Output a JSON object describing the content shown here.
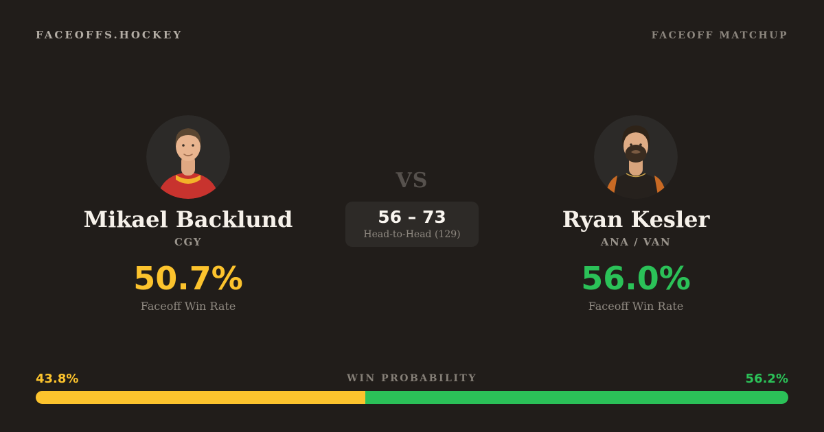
{
  "header": {
    "brand": "FACEOFFS.HOCKEY",
    "page_label": "FACEOFF MATCHUP"
  },
  "players": {
    "left": {
      "name": "Mikael Backlund",
      "team": "CGY",
      "win_rate": "50.7%",
      "win_rate_label": "Faceoff Win Rate",
      "accent_color": "#fcc32d",
      "avatar_icon": "player-headshot-backlund"
    },
    "right": {
      "name": "Ryan Kesler",
      "team": "ANA / VAN",
      "win_rate": "56.0%",
      "win_rate_label": "Faceoff Win Rate",
      "accent_color": "#2bc158",
      "avatar_icon": "player-headshot-kesler"
    }
  },
  "matchup": {
    "vs_label": "VS",
    "head_to_head_score": "56 – 73",
    "head_to_head_label": "Head-to-Head (129)"
  },
  "win_probability": {
    "label": "WIN PROBABILITY",
    "left": {
      "text": "43.8%",
      "value": 43.8,
      "color": "#fcc32d"
    },
    "right": {
      "text": "56.2%",
      "value": 56.2,
      "color": "#2bc158"
    }
  },
  "colors": {
    "background": "#211d1a",
    "pill_surface": "#2d2a27",
    "avatar_background": "#2c2a28",
    "text_primary": "#f6f1ea",
    "text_muted": "#8f8981",
    "vs_text": "#56514d"
  }
}
